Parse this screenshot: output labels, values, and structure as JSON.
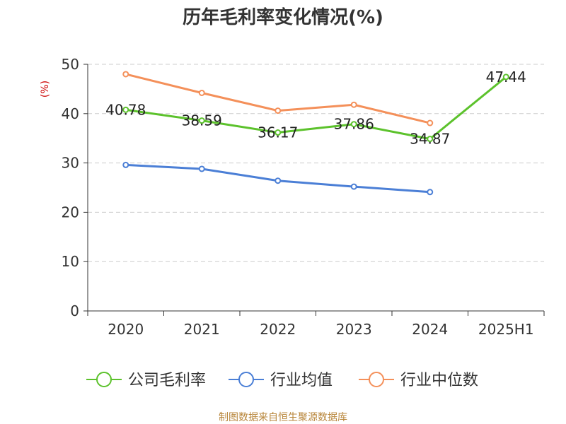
{
  "chart_data": {
    "type": "line",
    "title": "历年毛利率变化情况(%)",
    "ylabel": "(%)",
    "xlabel": "",
    "categories": [
      "2020",
      "2021",
      "2022",
      "2023",
      "2024",
      "2025H1"
    ],
    "ylim": [
      0,
      50
    ],
    "yticks": [
      0,
      10,
      20,
      30,
      40,
      50
    ],
    "grid": true,
    "legend_position": "bottom",
    "series": [
      {
        "name": "公司毛利率",
        "color": "#5cc22c",
        "values": [
          40.78,
          38.59,
          36.17,
          37.86,
          34.87,
          47.44
        ],
        "data_labels": [
          "40.78",
          "38.59",
          "36.17",
          "37.86",
          "34.87",
          "47.44"
        ]
      },
      {
        "name": "行业均值",
        "color": "#4b7fd6",
        "values": [
          29.6,
          28.8,
          26.4,
          25.2,
          24.1,
          null
        ]
      },
      {
        "name": "行业中位数",
        "color": "#f4905a",
        "values": [
          48.0,
          44.2,
          40.6,
          41.8,
          38.1,
          null
        ]
      }
    ]
  },
  "footer": {
    "source": "制图数据来自恒生聚源数据库"
  }
}
